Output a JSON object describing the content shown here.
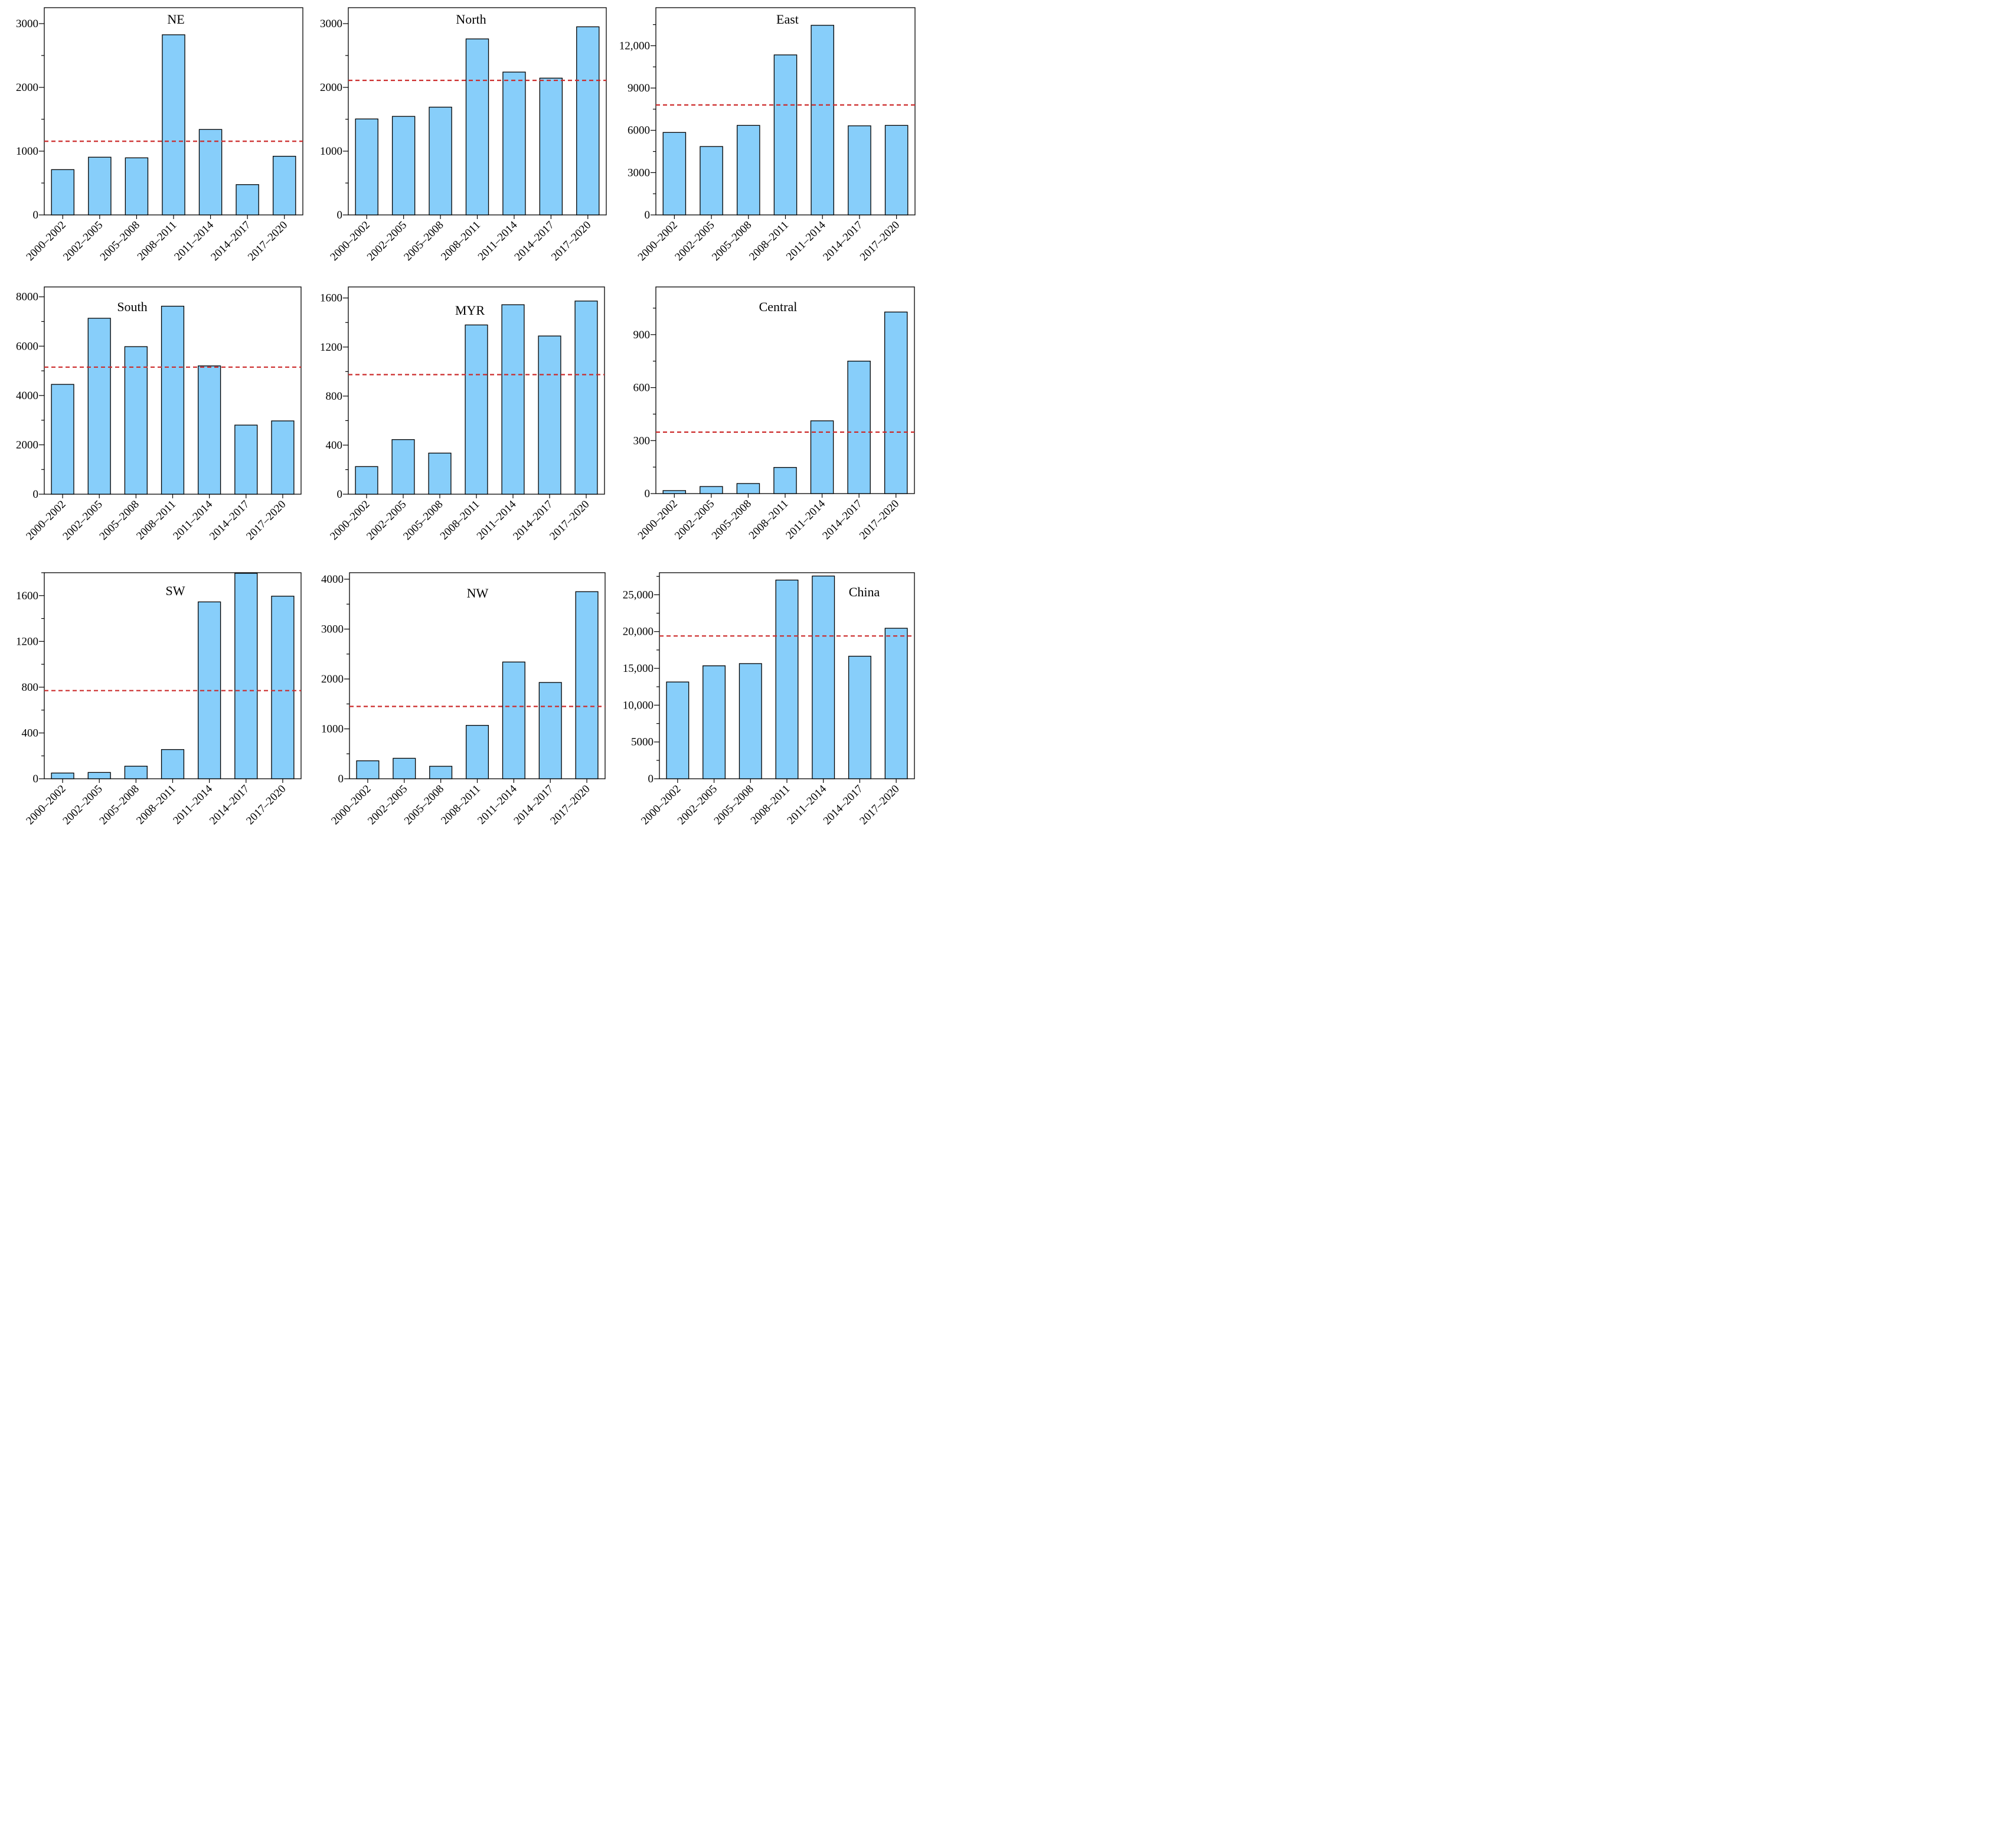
{
  "figure": {
    "bar_color": "#87cefa",
    "bar_stroke": "#000000",
    "mean_line_color": "#cc2b2b"
  },
  "chart_data": [
    {
      "type": "bar",
      "title": "NE",
      "categories": [
        "2000–2002",
        "2002–2005",
        "2005–2008",
        "2008–2011",
        "2011–2014",
        "2014–2017",
        "2017–2020"
      ],
      "values": [
        710,
        905,
        895,
        2825,
        1340,
        475,
        920
      ],
      "mean_line": 1155,
      "ylim": [
        0,
        3250
      ],
      "yticks": [
        0,
        1000,
        2000,
        3000
      ],
      "ytick_labels": [
        "0",
        "1000",
        "2000",
        "3000"
      ],
      "xlabel": "",
      "ylabel": ""
    },
    {
      "type": "bar",
      "title": "North",
      "categories": [
        "2000–2002",
        "2002–2005",
        "2005–2008",
        "2008–2011",
        "2011–2014",
        "2014–2017",
        "2017–2020"
      ],
      "values": [
        1505,
        1545,
        1690,
        2760,
        2240,
        2145,
        2950
      ],
      "mean_line": 2110,
      "ylim": [
        0,
        3250
      ],
      "yticks": [
        0,
        1000,
        2000,
        3000
      ],
      "ytick_labels": [
        "0",
        "1000",
        "2000",
        "3000"
      ],
      "xlabel": "",
      "ylabel": ""
    },
    {
      "type": "bar",
      "title": "East",
      "categories": [
        "2000–2002",
        "2002–2005",
        "2005–2008",
        "2008–2011",
        "2011–2014",
        "2014–2017",
        "2017–2020"
      ],
      "values": [
        5850,
        4850,
        6350,
        11350,
        13450,
        6320,
        6350
      ],
      "mean_line": 7800,
      "ylim": [
        0,
        14700
      ],
      "yticks": [
        0,
        3000,
        6000,
        9000,
        12000
      ],
      "ytick_labels": [
        "0",
        "3000",
        "6000",
        "9000",
        "12,000"
      ],
      "xlabel": "",
      "ylabel": ""
    },
    {
      "type": "bar",
      "title": "South",
      "categories": [
        "2000–2002",
        "2002–2005",
        "2005–2008",
        "2008–2011",
        "2011–2014",
        "2014–2017",
        "2017–2020"
      ],
      "values": [
        4450,
        7130,
        5980,
        7620,
        5200,
        2800,
        2970
      ],
      "mean_line": 5150,
      "ylim": [
        0,
        8400
      ],
      "yticks": [
        0,
        2000,
        4000,
        6000,
        8000
      ],
      "ytick_labels": [
        "0",
        "2000",
        "4000",
        "6000",
        "8000"
      ],
      "xlabel": "",
      "ylabel": ""
    },
    {
      "type": "bar",
      "title": "MYR",
      "categories": [
        "2000–2002",
        "2002–2005",
        "2005–2008",
        "2008–2011",
        "2011–2014",
        "2014–2017",
        "2017–2020"
      ],
      "values": [
        225,
        445,
        335,
        1380,
        1545,
        1290,
        1575
      ],
      "mean_line": 975,
      "ylim": [
        0,
        1690
      ],
      "yticks": [
        0,
        400,
        800,
        1200,
        1600
      ],
      "ytick_labels": [
        "0",
        "400",
        "800",
        "1200",
        "1600"
      ],
      "xlabel": "",
      "ylabel": ""
    },
    {
      "type": "bar",
      "title": "Central",
      "categories": [
        "2000–2002",
        "2002–2005",
        "2005–2008",
        "2008–2011",
        "2011–2014",
        "2014–2017",
        "2017–2020"
      ],
      "values": [
        17,
        40,
        57,
        148,
        412,
        750,
        1028
      ],
      "mean_line": 348,
      "ylim": [
        0,
        1170
      ],
      "yticks": [
        0,
        300,
        600,
        900
      ],
      "ytick_labels": [
        "0",
        "300",
        "600",
        "900"
      ],
      "xlabel": "",
      "ylabel": ""
    },
    {
      "type": "bar",
      "title": "SW",
      "categories": [
        "2000–2002",
        "2002–2005",
        "2005–2008",
        "2008–2011",
        "2011–2014",
        "2014–2017",
        "2017–2020"
      ],
      "values": [
        50,
        55,
        110,
        255,
        1545,
        1795,
        1595
      ],
      "mean_line": 770,
      "ylim": [
        0,
        1800
      ],
      "yticks": [
        0,
        400,
        800,
        1200,
        1600
      ],
      "ytick_labels": [
        "0",
        "400",
        "800",
        "1200",
        "1600"
      ],
      "xlabel": "",
      "ylabel": ""
    },
    {
      "type": "bar",
      "title": "NW",
      "categories": [
        "2000–2002",
        "2002–2005",
        "2005–2008",
        "2008–2011",
        "2011–2014",
        "2014–2017",
        "2017–2020"
      ],
      "values": [
        360,
        410,
        250,
        1070,
        2340,
        1930,
        3750
      ],
      "mean_line": 1450,
      "ylim": [
        0,
        4130
      ],
      "yticks": [
        0,
        1000,
        2000,
        3000,
        4000
      ],
      "ytick_labels": [
        "0",
        "1000",
        "2000",
        "3000",
        "4000"
      ],
      "xlabel": "",
      "ylabel": ""
    },
    {
      "type": "bar",
      "title": "China",
      "categories": [
        "2000–2002",
        "2002–2005",
        "2005–2008",
        "2008–2011",
        "2011–2014",
        "2014–2017",
        "2017–2020"
      ],
      "values": [
        13150,
        15350,
        15650,
        27000,
        27550,
        16650,
        20450
      ],
      "mean_line": 19400,
      "ylim": [
        0,
        28000
      ],
      "yticks": [
        0,
        5000,
        10000,
        15000,
        20000,
        25000
      ],
      "ytick_labels": [
        "0",
        "5000",
        "10,000",
        "15,000",
        "20,000",
        "25,000"
      ],
      "xlabel": "",
      "ylabel": ""
    }
  ]
}
